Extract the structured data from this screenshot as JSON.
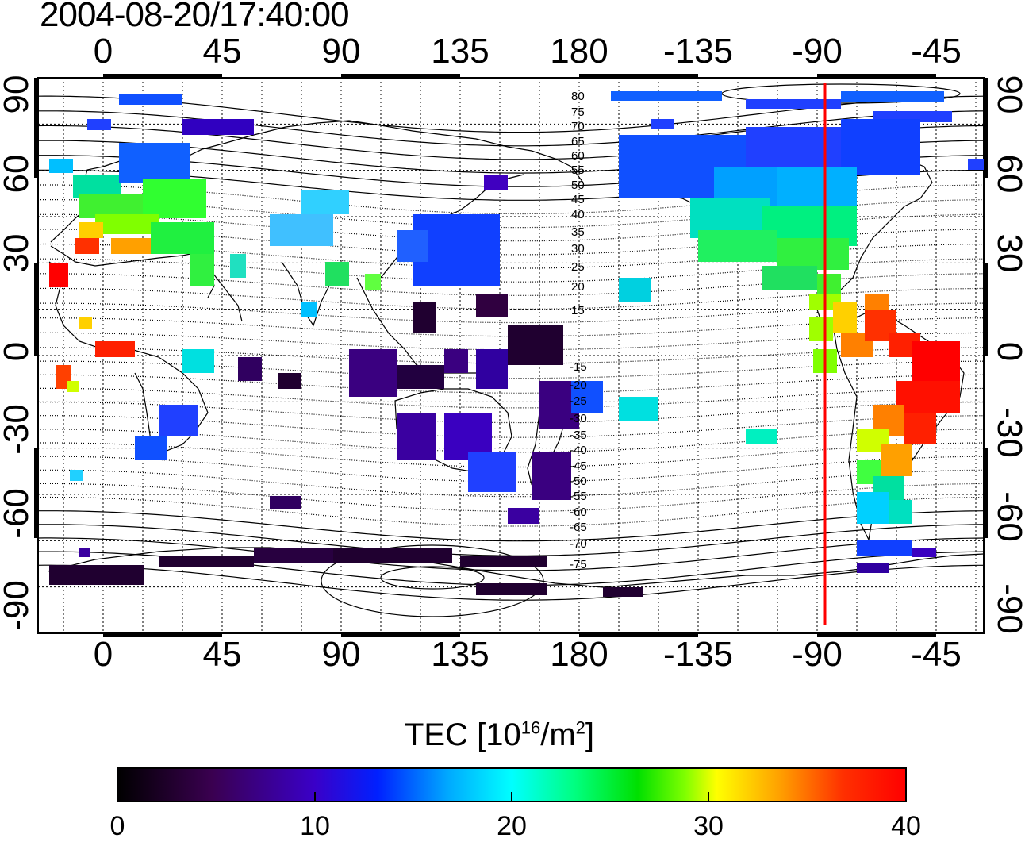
{
  "title": "2004-08-20/17:40:00",
  "x_ticks": [
    "0",
    "45",
    "90",
    "135",
    "180",
    "-135",
    "-90",
    "-45"
  ],
  "y_ticks": [
    "90",
    "60",
    "30",
    "0",
    "-30",
    "-60",
    "-90"
  ],
  "mag_labels_north": [
    "80",
    "75",
    "70",
    "65",
    "60",
    "55",
    "50",
    "45",
    "40",
    "35",
    "30",
    "25",
    "20",
    "15"
  ],
  "mag_labels_south": [
    "15",
    "20",
    "25",
    "30",
    "35",
    "40",
    "45",
    "50",
    "55",
    "60",
    "65",
    "70",
    "75"
  ],
  "colorbar": {
    "title": "TEC  [10",
    "title_sup1": "16",
    "title_mid": "/m",
    "title_sup2": "2",
    "title_end": "]",
    "min": 0,
    "max": 40,
    "tick_labels": [
      "0",
      "10",
      "20",
      "30",
      "40"
    ],
    "colors": [
      "#000000",
      "#3a0050",
      "#5a00c8",
      "#0020ff",
      "#00aaff",
      "#00ffff",
      "#00ff80",
      "#00e000",
      "#80ff00",
      "#ffff00",
      "#ffa000",
      "#ff3000",
      "#ff0000"
    ]
  },
  "red_line_longitude": -87,
  "colors": {
    "red_line": "#ff0000",
    "grid": "#000000"
  }
}
